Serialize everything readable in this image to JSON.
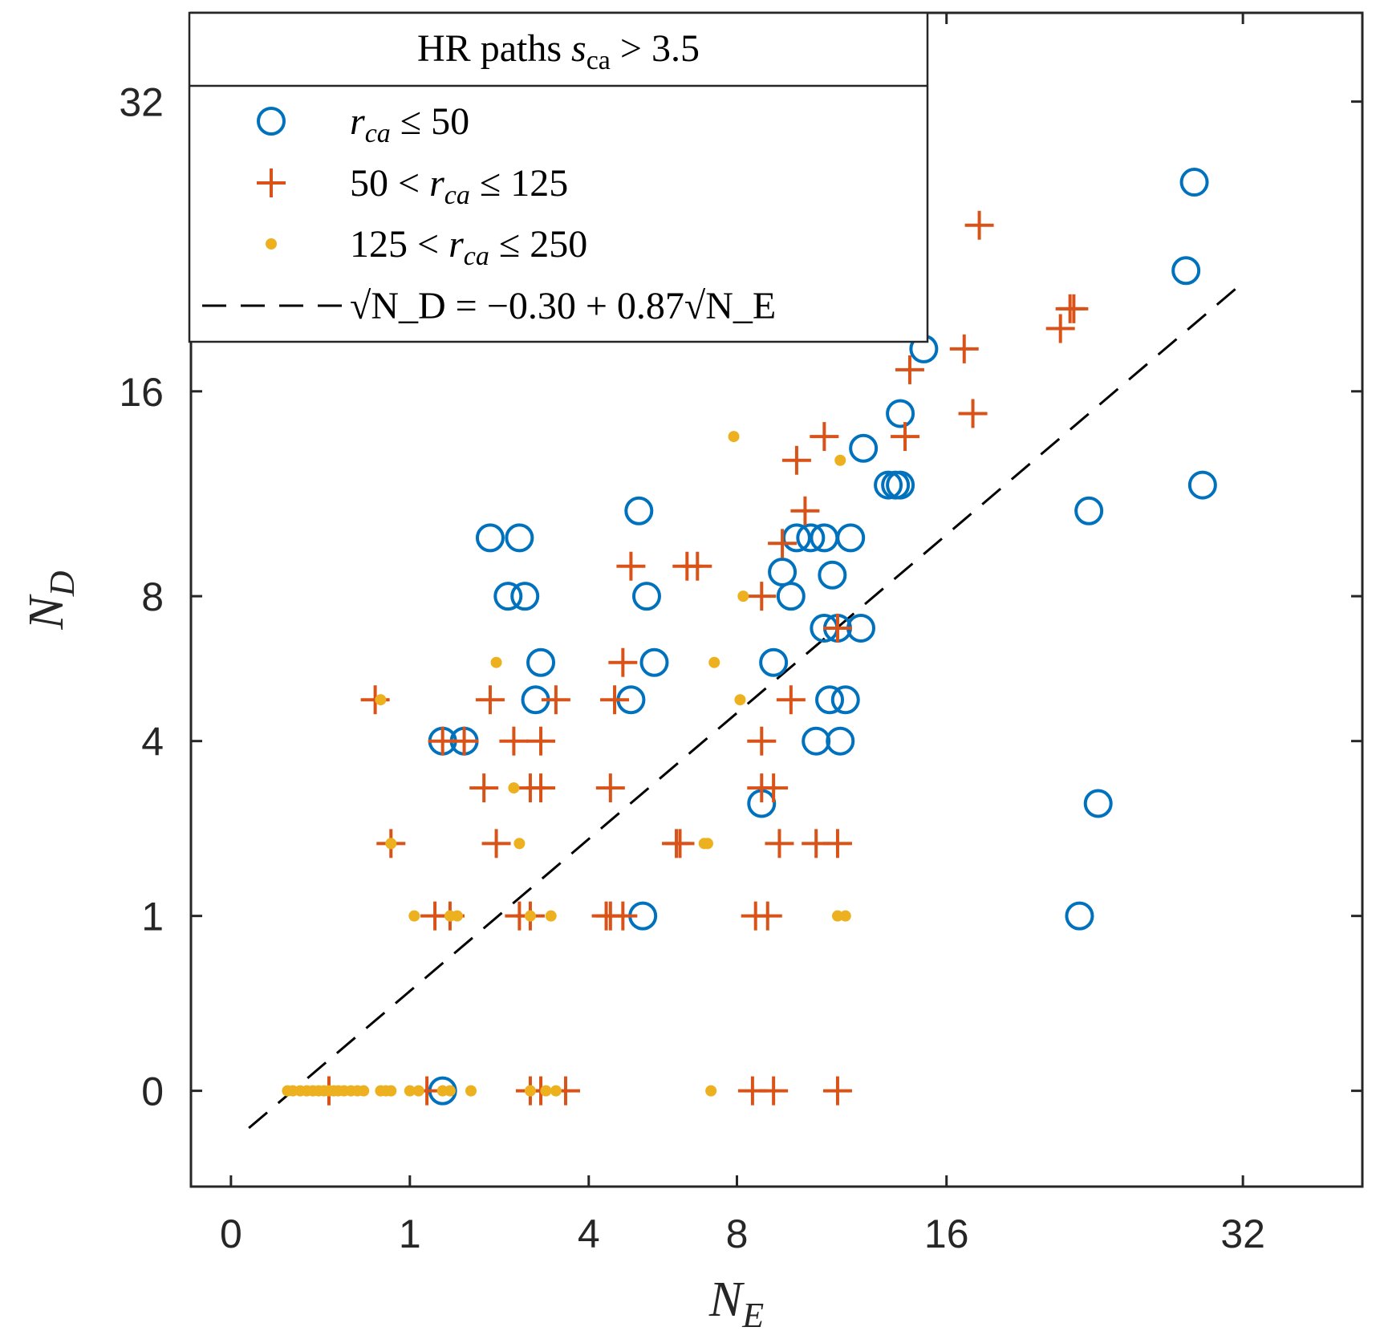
{
  "chart_data": {
    "type": "scatter",
    "xscale": "sqrt",
    "yscale": "sqrt",
    "xlabel": "N",
    "xlabel_sub": "E",
    "ylabel": "N",
    "ylabel_sub": "D",
    "xlim": [
      -0.05,
      40
    ],
    "ylim": [
      -0.3,
      38
    ],
    "xticks": [
      0,
      1,
      4,
      8,
      16,
      32
    ],
    "yticks": [
      0,
      1,
      4,
      8,
      16,
      32
    ],
    "legend": {
      "title_main": "HR paths ",
      "title_math": "s",
      "title_sub": "ca",
      "title_tail": " > 3.5",
      "placement": "top-left",
      "entries": [
        {
          "series": 0,
          "label": "r",
          "label_sub": "ca",
          "label_tail": " ≤ 50"
        },
        {
          "series": 1,
          "label_pre": "50 < ",
          "label": "r",
          "label_sub": "ca",
          "label_tail": " ≤ 125"
        },
        {
          "series": 2,
          "label_pre": "125 < ",
          "label": "r",
          "label_sub": "ca",
          "label_tail": " ≤ 250"
        },
        {
          "series": 3,
          "text": "√N_D = −0.30 + 0.87√N_E"
        }
      ]
    },
    "series": [
      {
        "name": "r_ca ≤ 50",
        "marker": "circle",
        "color": "#0072BD",
        "x": [
          29.0,
          28.5,
          29.5,
          23.0,
          23.5,
          22.5,
          15.0,
          14.0,
          14.0,
          13.5,
          13.8,
          12.5,
          10.0,
          10.5,
          11.0,
          12.0,
          11.3,
          11.0,
          12.4,
          11.5,
          11.8,
          11.2,
          11.6,
          10.7,
          9.8,
          9.5,
          9.2,
          8.8,
          5.2,
          5.4,
          5.6,
          5.0,
          5.3,
          2.1,
          2.6,
          2.4,
          2.7,
          2.9,
          3.0,
          1.7,
          1.4,
          1.4
        ],
        "y": [
          27.0,
          22.0,
          12.0,
          11.0,
          2.7,
          1.0,
          18.0,
          15.0,
          12.0,
          12.0,
          12.0,
          13.5,
          10.0,
          10.0,
          10.0,
          10.0,
          8.7,
          7.0,
          7.0,
          7.0,
          5.0,
          5.0,
          4.0,
          4.0,
          8.0,
          8.8,
          6.0,
          2.7,
          11.0,
          8.0,
          6.0,
          5.0,
          1.0,
          10.0,
          10.0,
          8.0,
          8.0,
          5.0,
          6.0,
          4.0,
          4.0,
          0.0
        ]
      },
      {
        "name": "50 < r_ca ≤ 125",
        "marker": "plus",
        "color": "#D95319",
        "x": [
          14.3,
          17.5,
          22.0,
          22.2,
          21.5,
          16.8,
          17.2,
          14.4,
          14.2,
          11.0,
          10.0,
          10.3,
          9.5,
          8.8,
          8.8,
          9.2,
          8.8,
          9.4,
          8.6,
          9.8,
          10.7,
          11.5,
          11.5,
          6.8,
          6.5,
          6.2,
          6.3,
          5.0,
          4.8,
          4.6,
          4.5,
          4.4,
          3.3,
          2.5,
          1.7,
          1.4,
          3.0,
          2.8,
          2.8,
          2.2,
          2.0,
          2.1,
          3.0,
          2.6,
          1.3,
          0.8,
          0.65,
          0.3,
          0.3,
          1.2,
          1.5,
          3.5,
          3.0,
          2.8,
          4.5,
          4.8,
          9.0,
          9.2,
          8.5,
          11.5
        ],
        "y": [
          24.5,
          24.5,
          20.0,
          20.0,
          19.0,
          18.0,
          15.0,
          17.0,
          14.0,
          14.0,
          13.0,
          11.0,
          9.8,
          8.0,
          4.0,
          3.0,
          3.0,
          2.0,
          1.0,
          5.0,
          2.0,
          2.0,
          7.0,
          9.0,
          9.0,
          2.0,
          2.0,
          9.0,
          6.0,
          5.0,
          3.0,
          1.0,
          5.0,
          4.0,
          4.0,
          4.0,
          3.0,
          3.0,
          1.0,
          2.0,
          3.0,
          5.0,
          4.0,
          1.0,
          1.0,
          2.0,
          5.0,
          0.0,
          0.0,
          0.0,
          1.0,
          0.0,
          0.0,
          0.0,
          1.0,
          1.0,
          1.0,
          0.0,
          0.0,
          0.0
        ],
        "_note": "arranged as display points"
      },
      {
        "name": "125 < r_ca ≤ 250",
        "marker": "dot",
        "color": "#EDB120",
        "x": [
          7.9,
          8.2,
          7.3,
          8.1,
          7.0,
          7.1,
          11.6,
          11.5,
          11.8,
          2.2,
          2.5,
          2.6,
          0.7,
          0.8,
          1.05,
          1.5,
          1.6,
          2.8,
          3.2,
          0.8,
          0.1,
          0.12,
          0.15,
          0.18,
          0.21,
          0.24,
          0.27,
          0.3,
          0.33,
          0.36,
          0.4,
          0.45,
          0.5,
          0.55,
          0.7,
          0.75,
          1.0,
          1.1,
          1.4,
          1.5,
          1.8,
          2.8,
          3.1,
          3.3,
          7.2
        ],
        "y": [
          14.0,
          8.0,
          6.0,
          5.0,
          2.0,
          2.0,
          13.0,
          1.0,
          1.0,
          6.0,
          3.0,
          2.0,
          5.0,
          2.0,
          1.0,
          1.0,
          1.0,
          1.0,
          1.0,
          0.0,
          0.0,
          0.0,
          0.0,
          0.0,
          0.0,
          0.0,
          0.0,
          0.0,
          0.0,
          0.0,
          0.0,
          0.0,
          0.0,
          0.0,
          0.0,
          0.0,
          0.0,
          0.0,
          0.0,
          0.0,
          0.0,
          0.0,
          0.0,
          0.0,
          0.0
        ]
      },
      {
        "name": "fit",
        "marker": "dashed-line",
        "color": "#000000",
        "intercept": -0.3,
        "slope": 0.87
      }
    ]
  }
}
